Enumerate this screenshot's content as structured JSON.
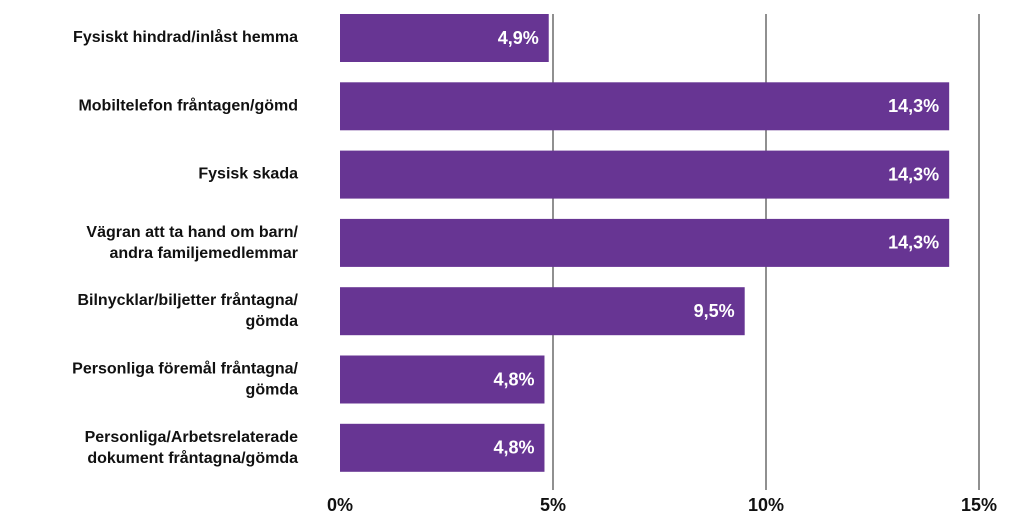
{
  "chart_data": {
    "type": "barh",
    "categories": [
      "Fysiskt hindrad/inlåst hemma",
      "Mobiltelefon fråntagen/gömd",
      "Fysisk skada",
      "Vägran att ta hand om barn/\nandra familjemedlemmar",
      "Bilnycklar/biljetter fråntagna/\ngömda",
      "Personliga föremål fråntagna/\ngömda",
      "Personliga/Arbetsrelaterade\ndokument fråntagna/gömda"
    ],
    "values": [
      4.9,
      14.3,
      14.3,
      14.3,
      9.5,
      4.8,
      4.8
    ],
    "value_labels": [
      "4,9%",
      "14,3%",
      "14,3%",
      "14,3%",
      "9,5%",
      "4,8%",
      "4,8%"
    ],
    "color": "#673593",
    "xlim": [
      0,
      15
    ],
    "xticks": [
      {
        "value": 0,
        "label": "0%"
      },
      {
        "value": 5,
        "label": "5%"
      },
      {
        "value": 10,
        "label": "10%"
      },
      {
        "value": 15,
        "label": "15%"
      }
    ],
    "grid": true
  }
}
